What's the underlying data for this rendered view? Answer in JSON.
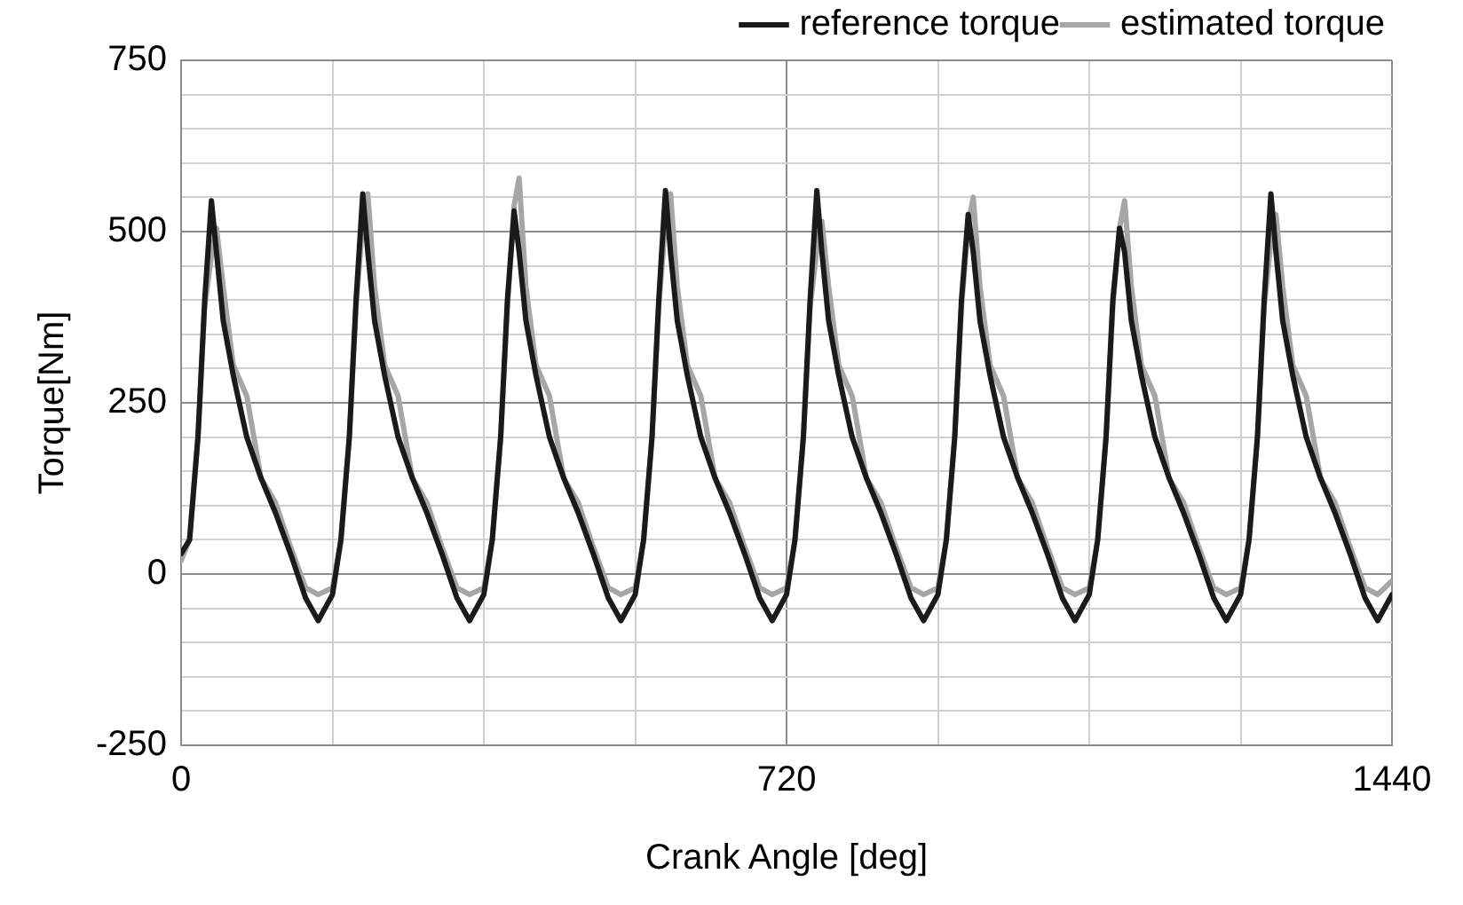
{
  "chart_data": {
    "type": "line",
    "xlabel": "Crank Angle [deg]",
    "ylabel": "Torque[Nm]",
    "x": [
      0,
      10,
      20,
      28,
      36,
      42,
      50,
      62,
      78,
      95,
      112,
      130,
      148,
      163,
      180,
      190,
      200,
      208,
      216,
      222,
      230,
      242,
      258,
      275,
      292,
      310,
      328,
      343,
      360,
      370,
      380,
      388,
      396,
      402,
      410,
      422,
      438,
      455,
      472,
      490,
      508,
      523,
      540,
      550,
      560,
      568,
      576,
      582,
      590,
      602,
      618,
      635,
      652,
      670,
      688,
      703,
      720,
      730,
      740,
      748,
      756,
      762,
      770,
      782,
      798,
      815,
      832,
      850,
      868,
      883,
      900,
      910,
      920,
      928,
      936,
      942,
      950,
      962,
      978,
      995,
      1012,
      1030,
      1048,
      1063,
      1080,
      1090,
      1100,
      1108,
      1116,
      1122,
      1130,
      1142,
      1158,
      1175,
      1192,
      1210,
      1228,
      1243,
      1260,
      1270,
      1280,
      1288,
      1296,
      1302,
      1310,
      1322,
      1338,
      1355,
      1372,
      1390,
      1408,
      1423,
      1440
    ],
    "series": [
      {
        "name": "reference torque",
        "color": "#1a1a1a",
        "values": [
          30,
          50,
          200,
          400,
          545,
          470,
          370,
          290,
          200,
          140,
          90,
          30,
          -35,
          -68,
          -30,
          50,
          200,
          400,
          555,
          470,
          370,
          290,
          200,
          140,
          90,
          30,
          -35,
          -68,
          -30,
          50,
          200,
          400,
          530,
          470,
          370,
          290,
          200,
          140,
          90,
          30,
          -35,
          -68,
          -30,
          50,
          200,
          400,
          560,
          470,
          370,
          290,
          200,
          140,
          90,
          30,
          -35,
          -68,
          -30,
          50,
          200,
          400,
          560,
          470,
          370,
          290,
          200,
          140,
          90,
          30,
          -35,
          -68,
          -30,
          50,
          200,
          400,
          525,
          470,
          370,
          290,
          200,
          140,
          90,
          30,
          -35,
          -68,
          -30,
          50,
          200,
          400,
          505,
          470,
          370,
          290,
          200,
          140,
          90,
          30,
          -35,
          -68,
          -30,
          50,
          200,
          400,
          555,
          470,
          370,
          290,
          200,
          140,
          90,
          30,
          -35,
          -68,
          -30
        ]
      },
      {
        "name": "estimated torque",
        "color": "#a6a6a6",
        "values": [
          20,
          50,
          200,
          390,
          465,
          505,
          420,
          305,
          260,
          140,
          105,
          40,
          -20,
          -30,
          -20,
          50,
          200,
          390,
          515,
          555,
          420,
          305,
          260,
          140,
          105,
          40,
          -20,
          -30,
          -20,
          50,
          200,
          390,
          538,
          578,
          420,
          305,
          260,
          140,
          105,
          40,
          -20,
          -30,
          -20,
          50,
          200,
          390,
          515,
          555,
          420,
          305,
          260,
          140,
          105,
          40,
          -20,
          -30,
          -20,
          50,
          200,
          390,
          475,
          515,
          420,
          305,
          260,
          140,
          105,
          40,
          -20,
          -30,
          -20,
          50,
          200,
          390,
          510,
          550,
          420,
          305,
          260,
          140,
          105,
          40,
          -20,
          -30,
          -20,
          50,
          200,
          390,
          505,
          545,
          420,
          305,
          260,
          140,
          105,
          40,
          -20,
          -30,
          -20,
          50,
          200,
          390,
          485,
          525,
          420,
          305,
          260,
          140,
          105,
          40,
          -20,
          -30,
          -10
        ]
      }
    ],
    "xlim": [
      0,
      1440
    ],
    "xticks": [
      0,
      {
        "value": 180,
        "label": null
      },
      {
        "value": 360,
        "label": null
      },
      {
        "value": 540,
        "label": null
      },
      720,
      {
        "value": 900,
        "label": null
      },
      {
        "value": 1080,
        "label": null
      },
      {
        "value": 1260,
        "label": null
      },
      1440
    ],
    "ylim": [
      -250,
      750
    ],
    "yticks": [
      -250,
      {
        "value": -200,
        "label": null
      },
      {
        "value": -150,
        "label": null
      },
      {
        "value": -100,
        "label": null
      },
      {
        "value": -50,
        "label": null
      },
      0,
      {
        "value": 50,
        "label": null
      },
      {
        "value": 100,
        "label": null
      },
      {
        "value": 150,
        "label": null
      },
      {
        "value": 200,
        "label": null
      },
      250,
      {
        "value": 300,
        "label": null
      },
      {
        "value": 350,
        "label": null
      },
      {
        "value": 400,
        "label": null
      },
      {
        "value": 450,
        "label": null
      },
      500,
      {
        "value": 550,
        "label": null
      },
      {
        "value": 600,
        "label": null
      },
      {
        "value": 650,
        "label": null
      },
      {
        "value": 700,
        "label": null
      },
      750
    ],
    "grid": true,
    "legend": "top right",
    "marker": "none",
    "line_style": "solid"
  }
}
